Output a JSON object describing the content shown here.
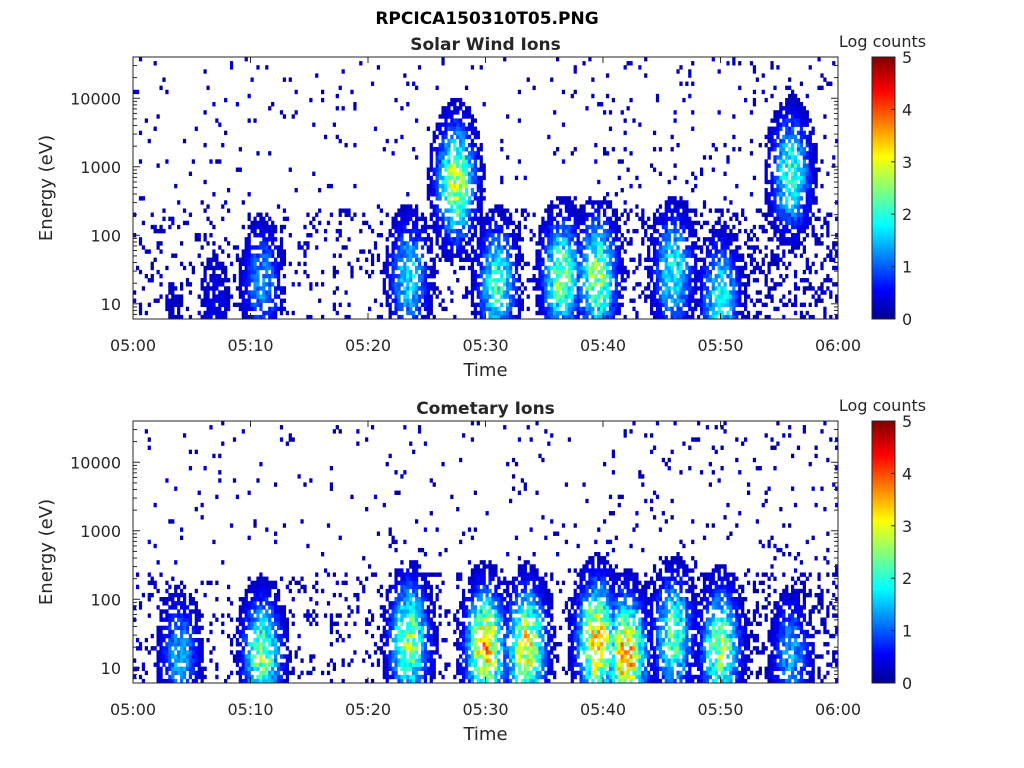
{
  "figure_title": "RPCICA150310T05.PNG",
  "colors": {
    "colormap": [
      "#00008f",
      "#0000ff",
      "#0080ff",
      "#00ffff",
      "#80ff80",
      "#ffff00",
      "#ff8000",
      "#ff0000",
      "#800000"
    ],
    "axis": "#262626",
    "background": "#ffffff"
  },
  "chart_data": [
    {
      "type": "heatmap",
      "title": "Solar Wind Ions",
      "xlabel": "Time",
      "ylabel": "Energy (eV)",
      "x_ticks": [
        "05:00",
        "05:10",
        "05:20",
        "05:30",
        "05:40",
        "05:50",
        "06:00"
      ],
      "xlim": [
        "05:00",
        "06:00"
      ],
      "y_scale": "log",
      "y_ticks": [
        "10",
        "100",
        "1000",
        "10000"
      ],
      "ylim": [
        6,
        40000
      ],
      "colorbar": {
        "label": "Log counts",
        "ticks": [
          "0",
          "1",
          "2",
          "3",
          "4",
          "5"
        ],
        "range": [
          0,
          5
        ]
      },
      "activity_peaks": [
        {
          "time": "05:03:30",
          "energy_eV": 10,
          "log_counts": 0.3
        },
        {
          "time": "05:07:00",
          "energy_eV": 12,
          "log_counts": 0.5
        },
        {
          "time": "05:11:00",
          "energy_eV": 20,
          "log_counts": 1.4
        },
        {
          "time": "05:23:30",
          "energy_eV": 25,
          "log_counts": 1.8
        },
        {
          "time": "05:27:30",
          "energy_eV": 600,
          "log_counts": 2.9
        },
        {
          "time": "05:31:00",
          "energy_eV": 20,
          "log_counts": 2.2
        },
        {
          "time": "05:36:30",
          "energy_eV": 25,
          "log_counts": 2.6
        },
        {
          "time": "05:39:30",
          "energy_eV": 25,
          "log_counts": 2.7
        },
        {
          "time": "05:46:00",
          "energy_eV": 30,
          "log_counts": 2.0
        },
        {
          "time": "05:50:00",
          "energy_eV": 12,
          "log_counts": 2.0
        },
        {
          "time": "05:56:00",
          "energy_eV": 800,
          "log_counts": 2.2
        }
      ]
    },
    {
      "type": "heatmap",
      "title": "Cometary Ions",
      "xlabel": "Time",
      "ylabel": "Energy (eV)",
      "x_ticks": [
        "05:00",
        "05:10",
        "05:20",
        "05:30",
        "05:40",
        "05:50",
        "06:00"
      ],
      "xlim": [
        "05:00",
        "06:00"
      ],
      "y_scale": "log",
      "y_ticks": [
        "10",
        "100",
        "1000",
        "10000"
      ],
      "ylim": [
        6,
        40000
      ],
      "colorbar": {
        "label": "Log counts",
        "ticks": [
          "0",
          "1",
          "2",
          "3",
          "4",
          "5"
        ],
        "range": [
          0,
          5
        ]
      },
      "activity_peaks": [
        {
          "time": "05:04:00",
          "energy_eV": 15,
          "log_counts": 1.5
        },
        {
          "time": "05:11:00",
          "energy_eV": 15,
          "log_counts": 2.6
        },
        {
          "time": "05:23:30",
          "energy_eV": 25,
          "log_counts": 2.8
        },
        {
          "time": "05:30:00",
          "energy_eV": 20,
          "log_counts": 3.5
        },
        {
          "time": "05:33:30",
          "energy_eV": 20,
          "log_counts": 3.3
        },
        {
          "time": "05:39:30",
          "energy_eV": 25,
          "log_counts": 3.6
        },
        {
          "time": "05:42:00",
          "energy_eV": 15,
          "log_counts": 3.7
        },
        {
          "time": "05:46:00",
          "energy_eV": 30,
          "log_counts": 2.4
        },
        {
          "time": "05:50:00",
          "energy_eV": 20,
          "log_counts": 2.7
        },
        {
          "time": "05:56:00",
          "energy_eV": 15,
          "log_counts": 1.5
        }
      ]
    }
  ]
}
